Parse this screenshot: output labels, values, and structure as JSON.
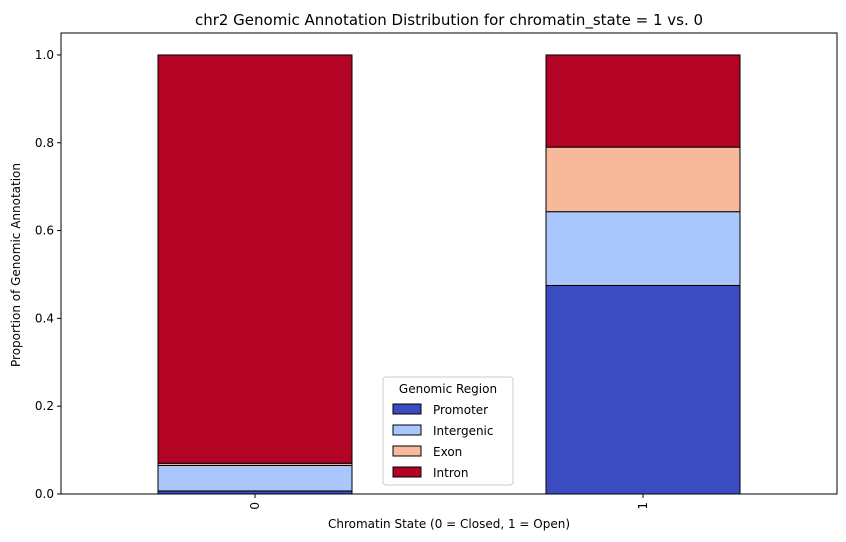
{
  "chart_data": {
    "type": "bar",
    "stacked": true,
    "title": "chr2 Genomic Annotation Distribution for chromatin_state = 1 vs. 0",
    "xlabel": "Chromatin State (0 = Closed, 1 = Open)",
    "ylabel": "Proportion of Genomic Annotation",
    "categories": [
      "0",
      "1"
    ],
    "ylim": [
      0,
      1.05
    ],
    "yticks": [
      "0.0",
      "0.2",
      "0.4",
      "0.6",
      "0.8",
      "1.0"
    ],
    "legend": {
      "title": "Genomic Region",
      "placement": "lower-center"
    },
    "series": [
      {
        "name": "Promoter",
        "color": "#3b4cc0",
        "values": [
          0.007,
          0.475
        ]
      },
      {
        "name": "Intergenic",
        "color": "#aac7fd",
        "values": [
          0.058,
          0.168
        ]
      },
      {
        "name": "Exon",
        "color": "#f7b89c",
        "values": [
          0.005,
          0.147
        ]
      },
      {
        "name": "Intron",
        "color": "#b40426",
        "values": [
          0.93,
          0.21
        ]
      }
    ]
  }
}
